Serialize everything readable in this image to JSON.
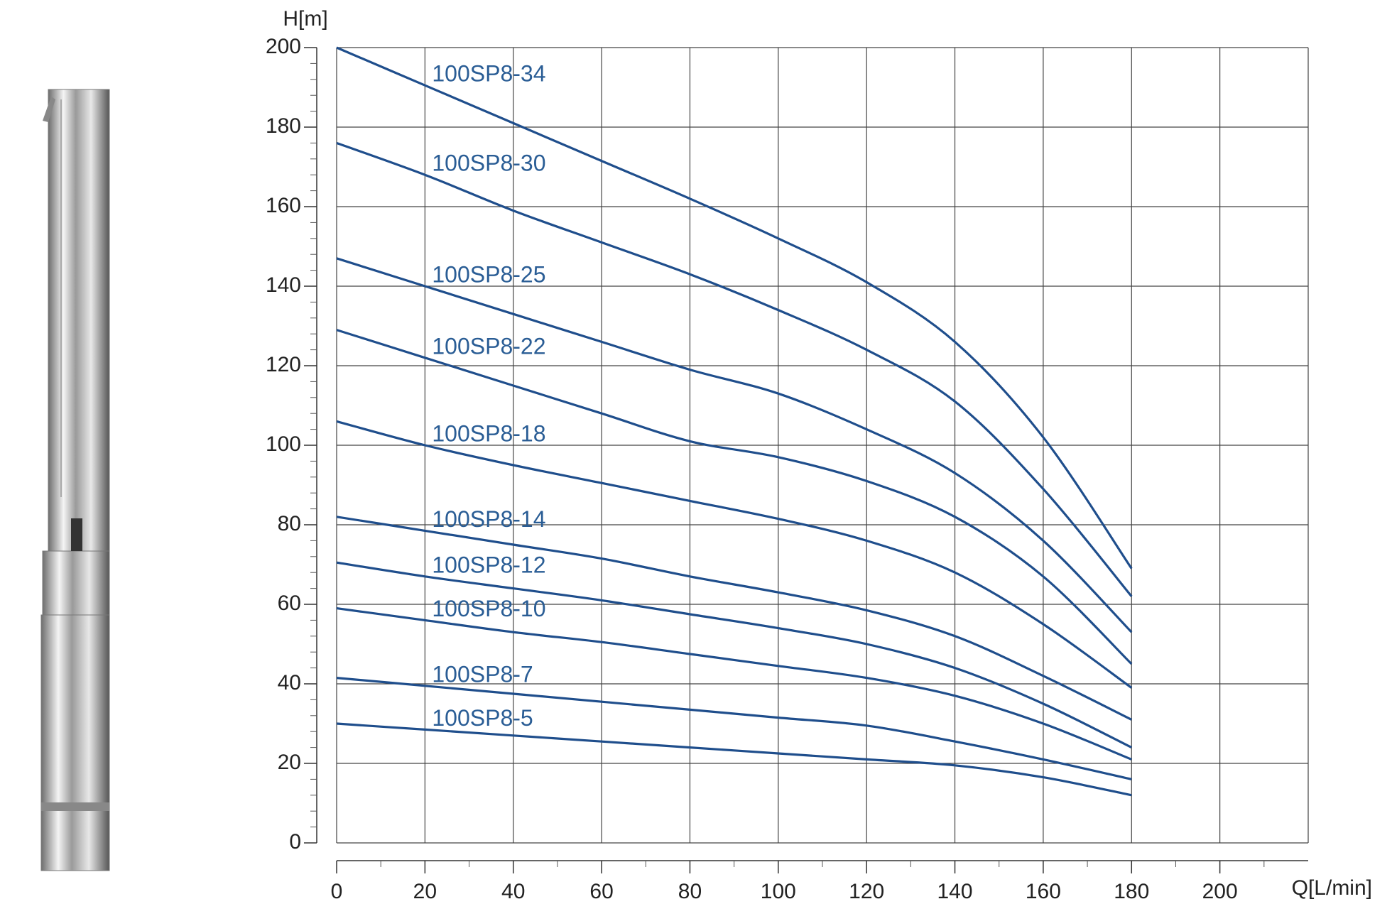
{
  "chart_data": {
    "type": "line",
    "y_label": "H[m]",
    "x_label": "Q[L/min]",
    "x": [
      0,
      20,
      40,
      60,
      80,
      100,
      120,
      140,
      160,
      180
    ],
    "xlim": [
      0,
      220
    ],
    "ylim": [
      0,
      200
    ],
    "xticks": [
      0,
      20,
      40,
      60,
      80,
      100,
      120,
      140,
      160,
      180,
      200
    ],
    "yticks": [
      0,
      20,
      40,
      60,
      80,
      100,
      120,
      140,
      160,
      180,
      200
    ],
    "x_minor_ticks": [
      10,
      30,
      50,
      70,
      90,
      110,
      130,
      150,
      170,
      190,
      210
    ],
    "y_minor_ticks": [
      4,
      8,
      12,
      16,
      24,
      28,
      32,
      36,
      44,
      48,
      52,
      56,
      64,
      68,
      72,
      76,
      84,
      88,
      92,
      96,
      104,
      108,
      112,
      116,
      124,
      128,
      132,
      136,
      144,
      148,
      152,
      156,
      164,
      168,
      172,
      176,
      184,
      188,
      192,
      196
    ],
    "grid": true,
    "series": [
      {
        "name": "100SP8-34",
        "color": "#1f4e8c",
        "values": [
          200,
          190.5,
          181,
          171.5,
          162,
          152,
          141,
          126,
          102,
          69
        ]
      },
      {
        "name": "100SP8-30",
        "color": "#1f4e8c",
        "values": [
          176,
          168,
          159,
          151,
          143,
          134,
          124,
          111,
          89,
          62
        ]
      },
      {
        "name": "100SP8-25",
        "color": "#1f4e8c",
        "values": [
          147,
          140,
          133,
          126,
          119,
          113,
          104,
          93,
          76,
          53
        ]
      },
      {
        "name": "100SP8-22",
        "color": "#1f4e8c",
        "values": [
          129,
          122,
          115,
          108,
          101,
          97,
          91,
          82,
          67,
          45
        ]
      },
      {
        "name": "100SP8-18",
        "color": "#1f4e8c",
        "values": [
          106,
          100,
          95,
          90.5,
          86,
          81.5,
          76,
          68,
          55,
          39
        ]
      },
      {
        "name": "100SP8-14",
        "color": "#1f4e8c",
        "values": [
          82,
          78.5,
          75,
          71.5,
          67,
          63,
          58.5,
          52,
          42,
          31
        ]
      },
      {
        "name": "100SP8-12",
        "color": "#1f4e8c",
        "values": [
          70.5,
          67,
          64,
          61,
          57.5,
          54,
          50,
          44,
          35,
          24
        ]
      },
      {
        "name": "100SP8-10",
        "color": "#1f4e8c",
        "values": [
          59,
          56,
          53,
          50.5,
          47.5,
          44.5,
          41.5,
          37,
          30,
          21
        ]
      },
      {
        "name": "100SP8-7",
        "color": "#1f4e8c",
        "values": [
          41.5,
          39.5,
          37.5,
          35.5,
          33.5,
          31.5,
          29.5,
          25.5,
          21,
          16
        ]
      },
      {
        "name": "100SP8-5",
        "color": "#1f4e8c",
        "values": [
          30,
          28.5,
          27,
          25.5,
          24,
          22.5,
          21,
          19.5,
          16.5,
          12
        ]
      }
    ]
  }
}
